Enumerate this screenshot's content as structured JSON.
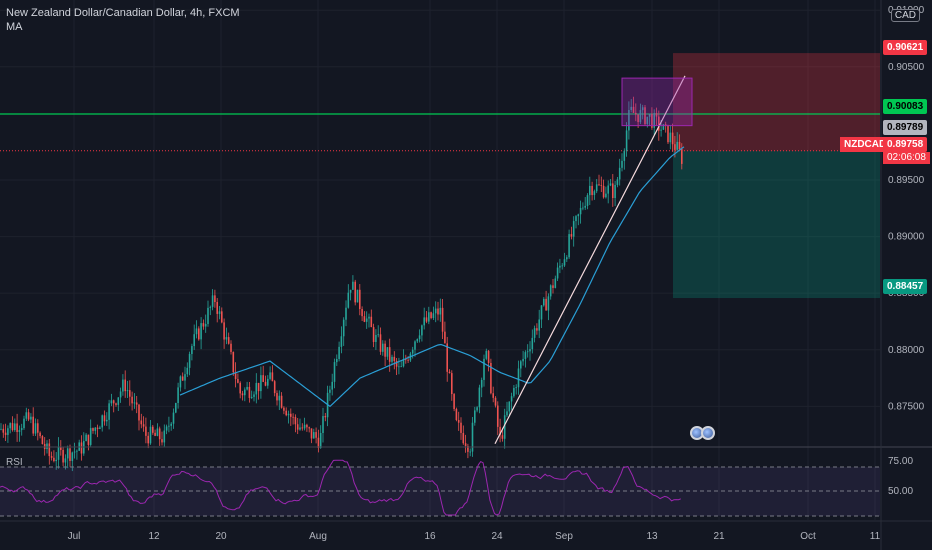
{
  "header": {
    "title": "New Zealand Dollar/Canadian Dollar, 4h, FXCM",
    "indicator": "MA",
    "currency": "CAD"
  },
  "rsi": {
    "label": "RSI",
    "levels": [
      "75.00",
      "50.00"
    ]
  },
  "labels": {
    "target_price": "0.90621",
    "green_line_price": "0.90083",
    "price_2": "0.89789",
    "symbol": "NZDCAD",
    "current_price": "0.89758",
    "countdown": "02:06:08",
    "stop_price": "0.88457"
  },
  "colors": {
    "up": "#26a69a",
    "down": "#ef5350",
    "ma": "#2a9fd6",
    "green_line": "#00c853",
    "rsi": "#9c27b0"
  },
  "chart_data": {
    "type": "candlestick",
    "title": "New Zealand Dollar/Canadian Dollar, 4h, FXCM",
    "ylim": [
      0.8715,
      0.9109
    ],
    "y_ticks": [
      "0.91000",
      "0.90500",
      "0.89500",
      "0.89000",
      "0.88500",
      "0.88000",
      "0.87500"
    ],
    "x_ticks": [
      "Jul",
      "12",
      "20",
      "Aug",
      "16",
      "24",
      "Sep",
      "13",
      "21",
      "Oct",
      "11"
    ],
    "price_path": [
      [
        0,
        0.873
      ],
      [
        30,
        0.8738
      ],
      [
        50,
        0.8705
      ],
      [
        80,
        0.8712
      ],
      [
        110,
        0.875
      ],
      [
        125,
        0.877
      ],
      [
        145,
        0.8725
      ],
      [
        165,
        0.8722
      ],
      [
        190,
        0.88
      ],
      [
        215,
        0.8845
      ],
      [
        240,
        0.8762
      ],
      [
        270,
        0.8773
      ],
      [
        295,
        0.8735
      ],
      [
        320,
        0.872
      ],
      [
        350,
        0.886
      ],
      [
        375,
        0.881
      ],
      [
        400,
        0.878
      ],
      [
        420,
        0.882
      ],
      [
        440,
        0.8835
      ],
      [
        455,
        0.8735
      ],
      [
        470,
        0.8715
      ],
      [
        485,
        0.88
      ],
      [
        500,
        0.872
      ],
      [
        520,
        0.8785
      ],
      [
        545,
        0.884
      ],
      [
        565,
        0.8885
      ],
      [
        590,
        0.8945
      ],
      [
        615,
        0.894
      ],
      [
        630,
        0.901
      ],
      [
        650,
        0.9005
      ],
      [
        670,
        0.8988
      ],
      [
        683,
        0.8968
      ]
    ],
    "ma_path": [
      [
        180,
        0.876
      ],
      [
        220,
        0.8775
      ],
      [
        270,
        0.879
      ],
      [
        300,
        0.877
      ],
      [
        330,
        0.875
      ],
      [
        360,
        0.8775
      ],
      [
        400,
        0.879
      ],
      [
        440,
        0.8805
      ],
      [
        470,
        0.8795
      ],
      [
        500,
        0.878
      ],
      [
        530,
        0.877
      ],
      [
        550,
        0.879
      ],
      [
        580,
        0.884
      ],
      [
        610,
        0.8895
      ],
      [
        640,
        0.894
      ],
      [
        670,
        0.897
      ],
      [
        685,
        0.898
      ]
    ],
    "trendline": [
      [
        495,
        0.8717
      ],
      [
        685,
        0.9042
      ]
    ],
    "horizontal_lines": {
      "green": 0.90083,
      "current": 0.89758
    },
    "position": {
      "entry": 0.89758,
      "target": 0.90621,
      "stop": 0.88457
    },
    "rsi_levels": [
      75,
      50
    ]
  }
}
